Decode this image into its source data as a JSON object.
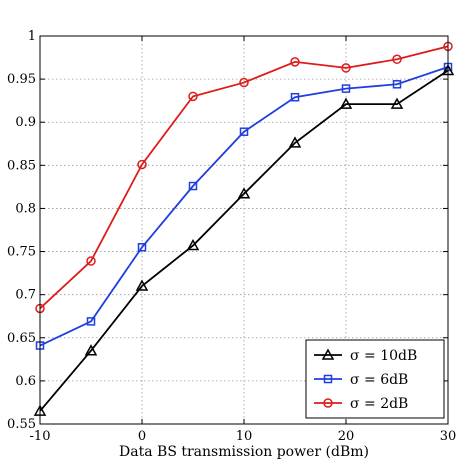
{
  "chart_data": {
    "type": "line",
    "xlabel": "Data BS transmission power (dBm)",
    "ylabel": "",
    "xlim": [
      -10,
      30
    ],
    "ylim": [
      0.55,
      1
    ],
    "xticks": [
      "-10",
      "0",
      "10",
      "20",
      "30"
    ],
    "yticks": [
      "0.55",
      "0.6",
      "0.65",
      "0.7",
      "0.75",
      "0.8",
      "0.85",
      "0.9",
      "0.95",
      "1"
    ],
    "grid": true,
    "legend_position": "bottom-right",
    "x": [
      -10,
      -5,
      0,
      5,
      10,
      15,
      20,
      25,
      30
    ],
    "series": [
      {
        "name": "σ = 10dB",
        "color": "#000000",
        "marker": "triangle",
        "values": [
          0.565,
          0.635,
          0.71,
          0.757,
          0.817,
          0.876,
          0.921,
          0.921,
          0.96
        ]
      },
      {
        "name": "σ = 6dB",
        "color": "#1f3fe0",
        "marker": "square",
        "values": [
          0.641,
          0.669,
          0.755,
          0.826,
          0.889,
          0.929,
          0.939,
          0.944,
          0.964
        ]
      },
      {
        "name": "σ = 2dB",
        "color": "#dd1c1c",
        "marker": "circle",
        "values": [
          0.684,
          0.739,
          0.851,
          0.93,
          0.946,
          0.97,
          0.963,
          0.973,
          0.988
        ]
      }
    ]
  }
}
